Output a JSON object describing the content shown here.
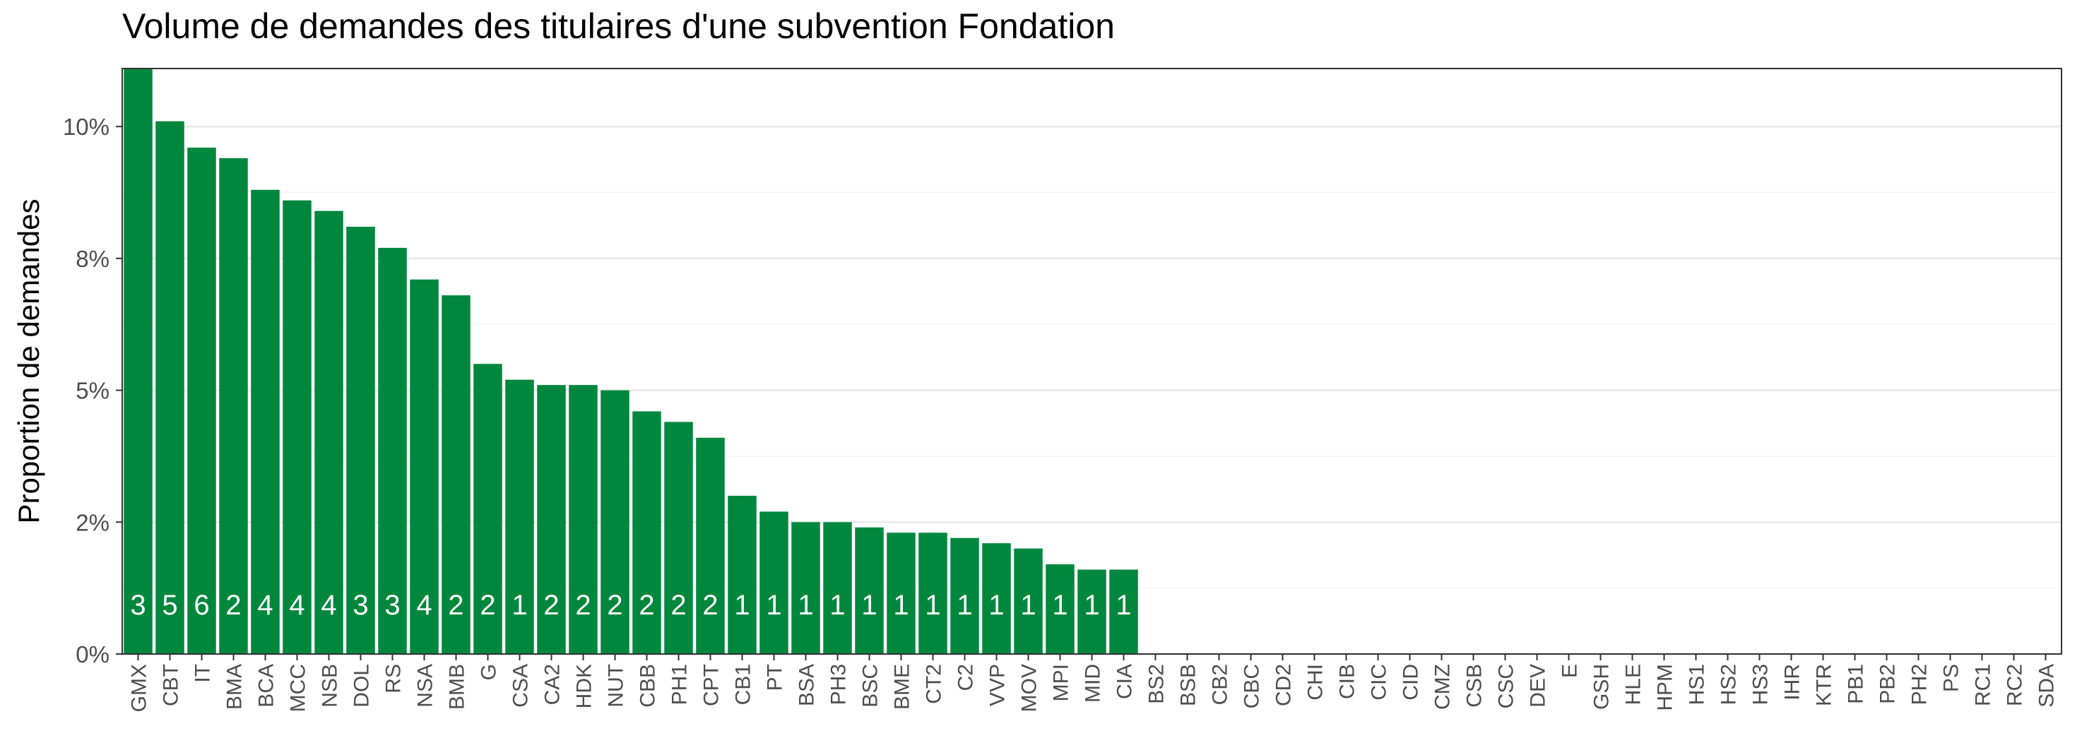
{
  "chart_data": {
    "type": "bar",
    "title": "Volume de demandes des titulaires d'une subvention Fondation",
    "xlabel": "",
    "ylabel": "Proportion de demandes",
    "y_tick_labels": [
      "0%",
      "2%",
      "5%",
      "8%",
      "10%"
    ],
    "y_tick_values": [
      0,
      0.025,
      0.05,
      0.075,
      0.1
    ],
    "ylim": [
      0,
      0.111
    ],
    "grid": "horizontal major",
    "bar_color": "#00873e",
    "categories": [
      "GMX",
      "CBT",
      "IT",
      "BMA",
      "BCA",
      "MCC",
      "NSB",
      "DOL",
      "RS",
      "NSA",
      "BMB",
      "G",
      "CSA",
      "CA2",
      "HDK",
      "NUT",
      "CBB",
      "PH1",
      "CPT",
      "CB1",
      "PT",
      "BSA",
      "PH3",
      "BSC",
      "BME",
      "CT2",
      "C2",
      "VVP",
      "MOV",
      "MPI",
      "MID",
      "CIA",
      "BS2",
      "BSB",
      "CB2",
      "CBC",
      "CD2",
      "CHI",
      "CIB",
      "CIC",
      "CID",
      "CMZ",
      "CSB",
      "CSC",
      "DEV",
      "E",
      "GSH",
      "HLE",
      "HPM",
      "HS1",
      "HS2",
      "HS3",
      "IHR",
      "KTR",
      "PB1",
      "PB2",
      "PH2",
      "PS",
      "RC1",
      "RC2",
      "SDA"
    ],
    "values": [
      0.111,
      0.101,
      0.096,
      0.094,
      0.088,
      0.086,
      0.084,
      0.081,
      0.077,
      0.071,
      0.068,
      0.055,
      0.052,
      0.051,
      0.051,
      0.05,
      0.046,
      0.044,
      0.041,
      0.03,
      0.027,
      0.025,
      0.025,
      0.024,
      0.023,
      0.023,
      0.022,
      0.021,
      0.02,
      0.017,
      0.016,
      0.016,
      0,
      0,
      0,
      0,
      0,
      0,
      0,
      0,
      0,
      0,
      0,
      0,
      0,
      0,
      0,
      0,
      0,
      0,
      0,
      0,
      0,
      0,
      0,
      0,
      0,
      0,
      0,
      0,
      0
    ],
    "labels": [
      "3",
      "5",
      "6",
      "2",
      "4",
      "4",
      "4",
      "3",
      "3",
      "4",
      "2",
      "2",
      "1",
      "2",
      "2",
      "2",
      "2",
      "2",
      "2",
      "1",
      "1",
      "1",
      "1",
      "1",
      "1",
      "1",
      "1",
      "1",
      "1",
      "1",
      "1",
      "1",
      "",
      "",
      "",
      "",
      "",
      "",
      "",
      "",
      "",
      "",
      "",
      "",
      "",
      "",
      "",
      "",
      "",
      "",
      "",
      "",
      "",
      "",
      "",
      "",
      "",
      "",
      "",
      "",
      ""
    ]
  }
}
